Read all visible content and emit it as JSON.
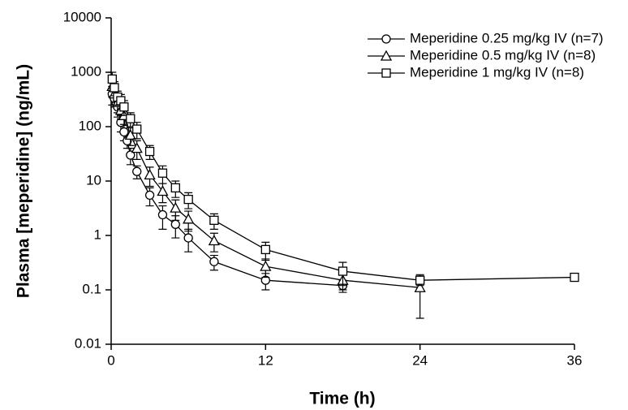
{
  "chart_data": {
    "type": "line",
    "y_log": true,
    "x_label": "Time (h)",
    "y_label": "Plasma [meperidine] (ng/mL)",
    "xlim": [
      0,
      36
    ],
    "xticks": [
      0,
      12,
      24,
      36
    ],
    "ylim": [
      0.01,
      10000
    ],
    "yticks": [
      0.01,
      0.1,
      1,
      10,
      100,
      1000,
      10000
    ],
    "legend": "top-right",
    "series": [
      {
        "name": "Meperidine 0.25 mg/kg IV (n=7)",
        "color": "#000000",
        "marker": "circle",
        "x": [
          0.083,
          0.25,
          0.5,
          0.75,
          1,
          1.25,
          1.5,
          2,
          3,
          4,
          5,
          6,
          8,
          12,
          18
        ],
        "values": [
          400,
          330,
          230,
          120,
          80,
          55,
          30,
          15,
          5.5,
          2.4,
          1.6,
          0.9,
          0.33,
          0.15,
          0.12
        ],
        "errors": [
          150,
          100,
          80,
          40,
          25,
          15,
          10,
          4,
          2,
          1.1,
          0.7,
          0.4,
          0.1,
          0.05,
          0.03
        ]
      },
      {
        "name": "Meperidine 0.5 mg/kg IV (n=8)",
        "color": "#000000",
        "marker": "triangle",
        "x": [
          0.083,
          0.25,
          0.5,
          0.75,
          1,
          1.5,
          2,
          3,
          4,
          5,
          6,
          8,
          12,
          18,
          24
        ],
        "values": [
          550,
          400,
          280,
          200,
          160,
          70,
          40,
          13,
          6.5,
          3.2,
          2.0,
          0.8,
          0.27,
          0.15,
          0.11
        ],
        "errors": [
          200,
          150,
          100,
          60,
          50,
          25,
          15,
          5,
          2.5,
          1.3,
          0.8,
          0.3,
          0.1,
          0.05,
          0.08
        ]
      },
      {
        "name": "Meperidine 1 mg/kg IV (n=8)",
        "color": "#000000",
        "marker": "square",
        "x": [
          0.083,
          0.25,
          0.5,
          0.75,
          1,
          1.5,
          2,
          3,
          4,
          5,
          6,
          8,
          12,
          18,
          24,
          36
        ],
        "values": [
          750,
          520,
          350,
          300,
          230,
          140,
          90,
          35,
          14,
          7.5,
          4.6,
          1.9,
          0.55,
          0.22,
          0.15,
          0.17
        ],
        "errors": [
          250,
          150,
          100,
          90,
          70,
          40,
          30,
          10,
          5,
          2.5,
          1.5,
          0.6,
          0.2,
          0.1,
          0.03,
          0.02
        ]
      }
    ]
  }
}
